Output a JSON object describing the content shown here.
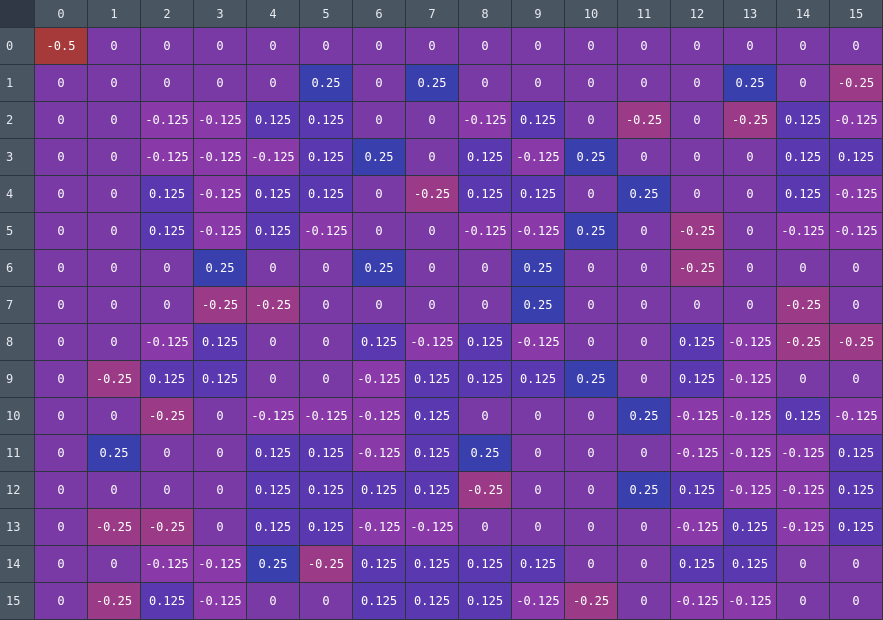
{
  "chart_data": {
    "type": "heatmap",
    "row_labels": [
      "0",
      "1",
      "2",
      "3",
      "4",
      "5",
      "6",
      "7",
      "8",
      "9",
      "10",
      "11",
      "12",
      "13",
      "14",
      "15"
    ],
    "col_labels": [
      "0",
      "1",
      "2",
      "3",
      "4",
      "5",
      "6",
      "7",
      "8",
      "9",
      "10",
      "11",
      "12",
      "13",
      "14",
      "15"
    ],
    "values": [
      [
        "-0.5",
        "0",
        "0",
        "0",
        "0",
        "0",
        "0",
        "0",
        "0",
        "0",
        "0",
        "0",
        "0",
        "0",
        "0",
        "0"
      ],
      [
        "0",
        "0",
        "0",
        "0",
        "0",
        "0.25",
        "0",
        "0.25",
        "0",
        "0",
        "0",
        "0",
        "0",
        "0.25",
        "0",
        "-0.25"
      ],
      [
        "0",
        "0",
        "-0.125",
        "-0.125",
        "0.125",
        "0.125",
        "0",
        "0",
        "-0.125",
        "0.125",
        "0",
        "-0.25",
        "0",
        "-0.25",
        "0.125",
        "-0.125"
      ],
      [
        "0",
        "0",
        "-0.125",
        "-0.125",
        "-0.125",
        "0.125",
        "0.25",
        "0",
        "0.125",
        "-0.125",
        "0.25",
        "0",
        "0",
        "0",
        "0.125",
        "0.125"
      ],
      [
        "0",
        "0",
        "0.125",
        "-0.125",
        "0.125",
        "0.125",
        "0",
        "-0.25",
        "0.125",
        "0.125",
        "0",
        "0.25",
        "0",
        "0",
        "0.125",
        "-0.125"
      ],
      [
        "0",
        "0",
        "0.125",
        "-0.125",
        "0.125",
        "-0.125",
        "0",
        "0",
        "-0.125",
        "-0.125",
        "0.25",
        "0",
        "-0.25",
        "0",
        "-0.125",
        "-0.125"
      ],
      [
        "0",
        "0",
        "0",
        "0.25",
        "0",
        "0",
        "0.25",
        "0",
        "0",
        "0.25",
        "0",
        "0",
        "-0.25",
        "0",
        "0",
        "0"
      ],
      [
        "0",
        "0",
        "0",
        "-0.25",
        "-0.25",
        "0",
        "0",
        "0",
        "0",
        "0.25",
        "0",
        "0",
        "0",
        "0",
        "-0.25",
        "0"
      ],
      [
        "0",
        "0",
        "-0.125",
        "0.125",
        "0",
        "0",
        "0.125",
        "-0.125",
        "0.125",
        "-0.125",
        "0",
        "0",
        "0.125",
        "-0.125",
        "-0.25",
        "-0.25"
      ],
      [
        "0",
        "-0.25",
        "0.125",
        "0.125",
        "0",
        "0",
        "-0.125",
        "0.125",
        "0.125",
        "0.125",
        "0.25",
        "0",
        "0.125",
        "-0.125",
        "0",
        "0"
      ],
      [
        "0",
        "0",
        "-0.25",
        "0",
        "-0.125",
        "-0.125",
        "-0.125",
        "0.125",
        "0",
        "0",
        "0",
        "0.25",
        "-0.125",
        "-0.125",
        "0.125",
        "-0.125"
      ],
      [
        "0",
        "0.25",
        "0",
        "0",
        "0.125",
        "0.125",
        "-0.125",
        "0.125",
        "0.25",
        "0",
        "0",
        "0",
        "-0.125",
        "-0.125",
        "-0.125",
        "0.125"
      ],
      [
        "0",
        "0",
        "0",
        "0",
        "0.125",
        "0.125",
        "0.125",
        "0.125",
        "-0.25",
        "0",
        "0",
        "0.25",
        "0.125",
        "-0.125",
        "-0.125",
        "0.125"
      ],
      [
        "0",
        "-0.25",
        "-0.25",
        "0",
        "0.125",
        "0.125",
        "-0.125",
        "-0.125",
        "0",
        "0",
        "0",
        "0",
        "-0.125",
        "0.125",
        "-0.125",
        "0.125"
      ],
      [
        "0",
        "0",
        "-0.125",
        "-0.125",
        "0.25",
        "-0.25",
        "0.125",
        "0.125",
        "0.125",
        "0.125",
        "0",
        "0",
        "0.125",
        "0.125",
        "0",
        "0"
      ],
      [
        "0",
        "-0.25",
        "0.125",
        "-0.125",
        "0",
        "0",
        "0.125",
        "0.125",
        "0.125",
        "-0.125",
        "-0.25",
        "0",
        "-0.125",
        "-0.125",
        "0",
        "0"
      ]
    ],
    "colors": {
      "-0.5": "#a63a3a",
      "-0.25": "#9b3a86",
      "-0.125": "#8a3aa8",
      "0": "#7a3aa6",
      "0.125": "#5a38b0",
      "0.25": "#3a3fae"
    }
  }
}
